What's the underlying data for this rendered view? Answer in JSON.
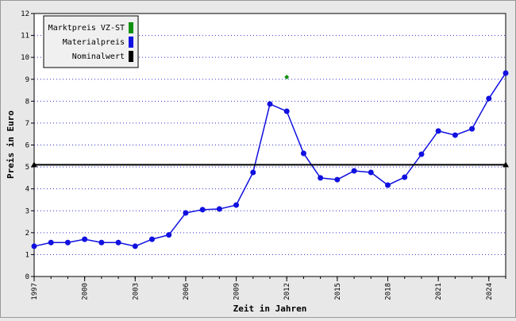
{
  "chart_data": {
    "type": "line",
    "x_label": "Zeit in Jahren",
    "y_label": "Preis in Euro",
    "xlim": [
      1997,
      2025
    ],
    "ylim": [
      0,
      12
    ],
    "xticks": [
      1997,
      2000,
      2003,
      2006,
      2009,
      2012,
      2015,
      2018,
      2021,
      2024
    ],
    "yticks": [
      0,
      1,
      2,
      3,
      4,
      5,
      6,
      7,
      8,
      9,
      10,
      11,
      12
    ],
    "grid": true,
    "legend": "upper left",
    "series": [
      {
        "name": "Marktpreis VZ-ST",
        "color": "#109010",
        "marker": "diamond",
        "x": [
          2012
        ],
        "values": [
          9.1
        ]
      },
      {
        "name": "Materialpreis",
        "color": "#1010e0",
        "marker": "circle",
        "x": [
          1997,
          1998,
          1999,
          2000,
          2001,
          2002,
          2003,
          2004,
          2005,
          2006,
          2007,
          2008,
          2009,
          2010,
          2011,
          2012,
          2013,
          2014,
          2015,
          2016,
          2017,
          2018,
          2019,
          2020,
          2021,
          2022,
          2023,
          2024,
          2025
        ],
        "values": [
          1.38,
          1.55,
          1.55,
          1.7,
          1.55,
          1.55,
          1.38,
          1.7,
          1.9,
          2.9,
          3.05,
          3.08,
          3.26,
          4.75,
          7.87,
          7.54,
          5.62,
          4.5,
          4.42,
          4.82,
          4.75,
          4.17,
          4.53,
          5.58,
          6.64,
          6.45,
          6.74,
          8.12,
          9.28
        ]
      },
      {
        "name": "Nominalwert",
        "color": "#000000",
        "marker": "triangle",
        "x": [
          1997,
          2025
        ],
        "values": [
          5.1,
          5.1
        ]
      }
    ]
  }
}
